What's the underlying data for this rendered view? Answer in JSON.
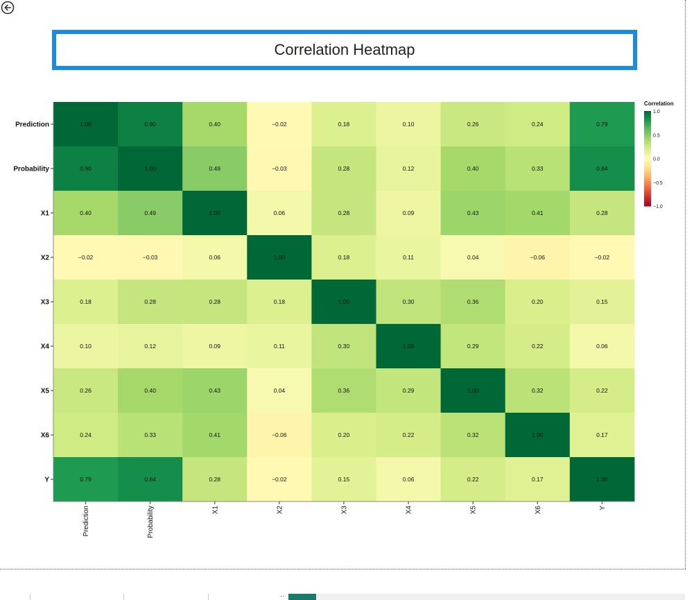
{
  "page": {
    "back_icon": "arrow-left-circle-icon",
    "title": "Correlation Heatmap",
    "accent_color": "#1e88e5"
  },
  "chart_data": {
    "type": "heatmap",
    "title": "Correlation Heatmap",
    "xlabel": "",
    "ylabel": "",
    "rows": [
      "Prediction",
      "Probability",
      "X1",
      "X2",
      "X3",
      "X4",
      "X5",
      "X6",
      "Y"
    ],
    "cols": [
      "Prediction",
      "Probability",
      "X1",
      "X2",
      "X3",
      "X4",
      "X5",
      "X6",
      "Y"
    ],
    "values": [
      [
        1.0,
        0.9,
        0.4,
        -0.02,
        0.18,
        0.1,
        0.26,
        0.24,
        0.79
      ],
      [
        0.9,
        1.0,
        0.49,
        -0.03,
        0.28,
        0.12,
        0.4,
        0.33,
        0.84
      ],
      [
        0.4,
        0.49,
        1.0,
        0.06,
        0.28,
        0.09,
        0.43,
        0.41,
        0.28
      ],
      [
        -0.02,
        -0.03,
        0.06,
        1.0,
        0.18,
        0.11,
        0.04,
        -0.06,
        -0.02
      ],
      [
        0.18,
        0.28,
        0.28,
        0.18,
        1.0,
        0.3,
        0.36,
        0.2,
        0.15
      ],
      [
        0.1,
        0.12,
        0.09,
        0.11,
        0.3,
        1.0,
        0.29,
        0.22,
        0.06
      ],
      [
        0.26,
        0.4,
        0.43,
        0.04,
        0.36,
        0.29,
        1.0,
        0.32,
        0.22
      ],
      [
        0.24,
        0.33,
        0.41,
        -0.06,
        0.2,
        0.22,
        0.32,
        1.0,
        0.17
      ],
      [
        0.79,
        0.84,
        0.28,
        -0.02,
        0.15,
        0.06,
        0.22,
        0.17,
        1.0
      ]
    ],
    "cell_labels": [
      [
        "1.00",
        "0.90",
        "0.40",
        "−0.02",
        "0.18",
        "0.10",
        "0.26",
        "0.24",
        "0.79"
      ],
      [
        "0.90",
        "1.00",
        "0.49",
        "−0.03",
        "0.28",
        "0.12",
        "0.40",
        "0.33",
        "0.84"
      ],
      [
        "0.40",
        "0.49",
        "1.00",
        "0.06",
        "0.28",
        "0.09",
        "0.43",
        "0.41",
        "0.28"
      ],
      [
        "−0.02",
        "−0.03",
        "0.06",
        "1.00",
        "0.18",
        "0.11",
        "0.04",
        "−0.06",
        "−0.02"
      ],
      [
        "0.18",
        "0.28",
        "0.28",
        "0.18",
        "1.00",
        "0.30",
        "0.36",
        "0.20",
        "0.15"
      ],
      [
        "0.10",
        "0.12",
        "0.09",
        "0.11",
        "0.30",
        "1.00",
        "0.29",
        "0.22",
        "0.06"
      ],
      [
        "0.26",
        "0.40",
        "0.43",
        "0.04",
        "0.36",
        "0.29",
        "1.00",
        "0.32",
        "0.22"
      ],
      [
        "0.24",
        "0.33",
        "0.41",
        "−0.06",
        "0.20",
        "0.22",
        "0.32",
        "1.00",
        "0.17"
      ],
      [
        "0.79",
        "0.84",
        "0.28",
        "−0.02",
        "0.15",
        "0.06",
        "0.22",
        "0.17",
        "1.00"
      ]
    ],
    "colorscale": "RdYlGn",
    "zlim": [
      -1,
      1
    ],
    "legend": {
      "title": "Correlation",
      "placement": "right",
      "ticks": [
        1.0,
        0.5,
        0.0,
        -0.5,
        -1.0
      ],
      "tick_labels": [
        "1.0",
        "0.5",
        "0.0",
        "−0.5",
        "−1.0"
      ]
    }
  }
}
